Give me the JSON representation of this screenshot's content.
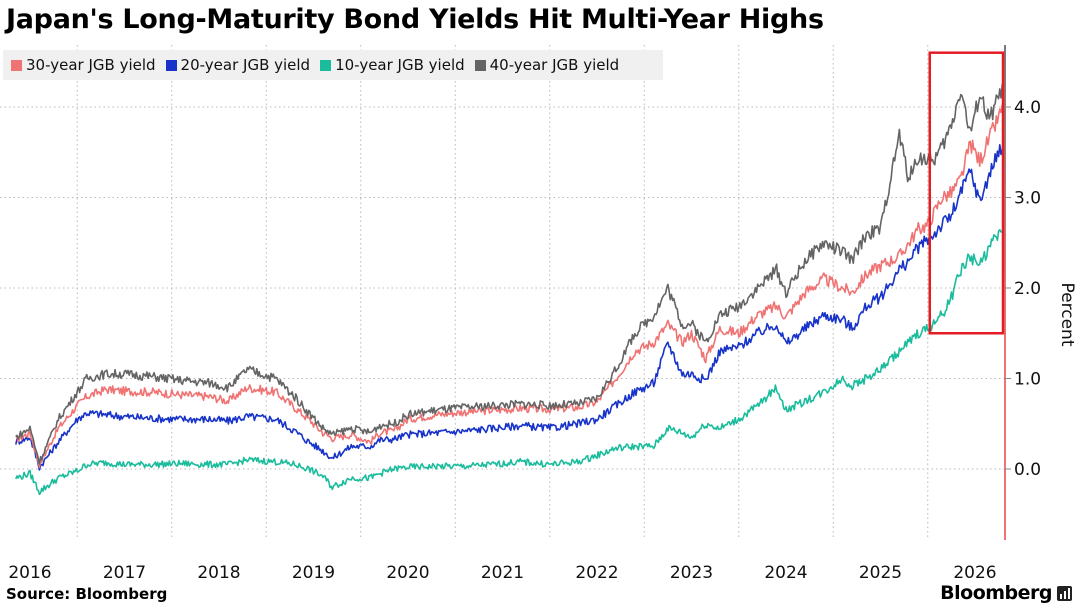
{
  "title": "Japan's Long-Maturity Bond Yields Hit Multi-Year Highs",
  "source": "Source: Bloomberg",
  "brand": "Bloomberg",
  "brand_icon": "bar-chart-icon",
  "chart_data": {
    "type": "line",
    "title": "Japan's Long-Maturity Bond Yields Hit Multi-Year Highs",
    "xlabel": "",
    "ylabel": "Percent",
    "ylim": [
      -0.75,
      4.7
    ],
    "yticks": [
      0.0,
      1.0,
      2.0,
      3.0,
      4.0
    ],
    "ytick_labels": [
      "0.0",
      "1.0",
      "2.0",
      "3.0",
      "4.0"
    ],
    "xlim": [
      2015.85,
      2026.45
    ],
    "xticks": [
      2016,
      2017,
      2018,
      2019,
      2020,
      2021,
      2022,
      2023,
      2024,
      2025,
      2026
    ],
    "xtick_labels": [
      "2016",
      "2017",
      "2018",
      "2019",
      "2020",
      "2021",
      "2022",
      "2023",
      "2024",
      "2025",
      "2026"
    ],
    "grid": true,
    "legend_position": "top-left",
    "highlight_box": {
      "x_range": [
        2025.5,
        2026.5
      ],
      "y_range": [
        1.5,
        4.6
      ],
      "color": "#e21d24"
    },
    "series": [
      {
        "name": "30-year JGB yield",
        "color": "#f07373",
        "x": [
          2015.85,
          2016.0,
          2016.1,
          2016.3,
          2016.5,
          2016.6,
          2016.8,
          2017.0,
          2017.3,
          2017.6,
          2017.9,
          2018.1,
          2018.3,
          2018.6,
          2018.8,
          2018.95,
          2019.1,
          2019.2,
          2019.4,
          2019.6,
          2019.7,
          2019.85,
          2020.0,
          2020.3,
          2020.6,
          2020.9,
          2021.2,
          2021.5,
          2021.8,
          2022.0,
          2022.2,
          2022.4,
          2022.6,
          2022.75,
          2022.9,
          2023.0,
          2023.15,
          2023.3,
          2023.5,
          2023.7,
          2023.9,
          2024.0,
          2024.2,
          2024.4,
          2024.6,
          2024.7,
          2024.85,
          2025.0,
          2025.2,
          2025.4,
          2025.5,
          2025.65,
          2025.75,
          2025.85,
          2025.95,
          2026.05,
          2026.15,
          2026.3
        ],
        "values": [
          0.32,
          0.4,
          0.05,
          0.45,
          0.7,
          0.8,
          0.88,
          0.86,
          0.85,
          0.82,
          0.8,
          0.75,
          0.9,
          0.85,
          0.68,
          0.55,
          0.4,
          0.34,
          0.38,
          0.3,
          0.4,
          0.42,
          0.55,
          0.6,
          0.63,
          0.65,
          0.67,
          0.66,
          0.68,
          0.74,
          1.0,
          1.3,
          1.4,
          1.6,
          1.4,
          1.5,
          1.22,
          1.55,
          1.5,
          1.7,
          1.8,
          1.68,
          1.95,
          2.1,
          2.0,
          1.95,
          2.15,
          2.25,
          2.35,
          2.65,
          2.7,
          3.0,
          3.05,
          3.2,
          3.6,
          3.4,
          3.65,
          4.0
        ]
      },
      {
        "name": "20-year JGB yield",
        "color": "#1733c9",
        "x": [
          2015.85,
          2016.0,
          2016.1,
          2016.3,
          2016.5,
          2016.6,
          2016.8,
          2017.0,
          2017.3,
          2017.6,
          2017.9,
          2018.1,
          2018.3,
          2018.6,
          2018.8,
          2018.95,
          2019.1,
          2019.2,
          2019.4,
          2019.6,
          2019.7,
          2019.85,
          2020.0,
          2020.3,
          2020.6,
          2020.9,
          2021.2,
          2021.5,
          2021.8,
          2022.0,
          2022.2,
          2022.4,
          2022.6,
          2022.75,
          2022.9,
          2023.0,
          2023.15,
          2023.3,
          2023.5,
          2023.7,
          2023.9,
          2024.0,
          2024.2,
          2024.4,
          2024.6,
          2024.7,
          2024.85,
          2025.0,
          2025.2,
          2025.3,
          2025.4,
          2025.55,
          2025.65,
          2025.75,
          2025.85,
          2025.95,
          2026.05,
          2026.15,
          2026.3
        ],
        "values": [
          0.3,
          0.35,
          0.02,
          0.3,
          0.55,
          0.62,
          0.6,
          0.58,
          0.56,
          0.55,
          0.55,
          0.53,
          0.58,
          0.55,
          0.42,
          0.3,
          0.2,
          0.12,
          0.25,
          0.25,
          0.32,
          0.33,
          0.38,
          0.4,
          0.42,
          0.45,
          0.48,
          0.45,
          0.5,
          0.55,
          0.7,
          0.85,
          0.95,
          1.4,
          1.05,
          1.05,
          0.98,
          1.3,
          1.35,
          1.5,
          1.6,
          1.38,
          1.55,
          1.7,
          1.65,
          1.55,
          1.8,
          1.9,
          2.2,
          2.3,
          2.45,
          2.58,
          2.7,
          2.8,
          3.05,
          3.3,
          2.95,
          3.25,
          3.62
        ]
      },
      {
        "name": "10-year JGB yield",
        "color": "#1abc9c",
        "x": [
          2015.85,
          2016.0,
          2016.1,
          2016.3,
          2016.5,
          2016.6,
          2016.8,
          2017.0,
          2017.3,
          2017.6,
          2017.9,
          2018.1,
          2018.3,
          2018.6,
          2018.8,
          2018.95,
          2019.1,
          2019.2,
          2019.4,
          2019.6,
          2019.7,
          2019.85,
          2020.0,
          2020.3,
          2020.6,
          2020.9,
          2021.2,
          2021.5,
          2021.8,
          2022.0,
          2022.2,
          2022.4,
          2022.6,
          2022.75,
          2022.9,
          2023.0,
          2023.15,
          2023.3,
          2023.5,
          2023.7,
          2023.9,
          2024.0,
          2024.2,
          2024.4,
          2024.6,
          2024.7,
          2024.85,
          2025.0,
          2025.2,
          2025.4,
          2025.5,
          2025.65,
          2025.75,
          2025.85,
          2025.95,
          2026.05,
          2026.15,
          2026.3
        ],
        "values": [
          -0.1,
          -0.05,
          -0.25,
          -0.1,
          -0.02,
          0.05,
          0.07,
          0.05,
          0.05,
          0.06,
          0.05,
          0.05,
          0.1,
          0.08,
          0.05,
          0.0,
          -0.08,
          -0.2,
          -0.1,
          -0.1,
          -0.05,
          0.0,
          0.02,
          0.03,
          0.03,
          0.05,
          0.08,
          0.05,
          0.08,
          0.15,
          0.23,
          0.25,
          0.25,
          0.45,
          0.4,
          0.35,
          0.5,
          0.45,
          0.55,
          0.7,
          0.9,
          0.65,
          0.75,
          0.85,
          1.0,
          0.92,
          1.0,
          1.1,
          1.3,
          1.5,
          1.55,
          1.7,
          1.9,
          2.2,
          2.35,
          2.25,
          2.45,
          2.65
        ]
      },
      {
        "name": "40-year JGB yield",
        "color": "#646464",
        "x": [
          2015.85,
          2016.0,
          2016.1,
          2016.3,
          2016.5,
          2016.6,
          2016.8,
          2017.0,
          2017.3,
          2017.6,
          2017.9,
          2018.1,
          2018.3,
          2018.6,
          2018.8,
          2018.95,
          2019.1,
          2019.2,
          2019.4,
          2019.6,
          2019.7,
          2019.85,
          2020.0,
          2020.3,
          2020.6,
          2020.9,
          2021.2,
          2021.5,
          2021.8,
          2022.0,
          2022.2,
          2022.4,
          2022.6,
          2022.75,
          2022.9,
          2023.0,
          2023.15,
          2023.3,
          2023.5,
          2023.7,
          2023.9,
          2024.0,
          2024.2,
          2024.4,
          2024.6,
          2024.7,
          2024.85,
          2025.0,
          2025.2,
          2025.3,
          2025.4,
          2025.55,
          2025.65,
          2025.75,
          2025.85,
          2025.95,
          2026.05,
          2026.15,
          2026.3
        ],
        "values": [
          0.35,
          0.45,
          0.08,
          0.55,
          0.85,
          1.0,
          1.05,
          1.05,
          1.02,
          0.98,
          0.95,
          0.9,
          1.1,
          1.0,
          0.8,
          0.62,
          0.45,
          0.38,
          0.45,
          0.4,
          0.48,
          0.5,
          0.6,
          0.65,
          0.68,
          0.7,
          0.72,
          0.7,
          0.72,
          0.78,
          1.1,
          1.5,
          1.7,
          2.0,
          1.6,
          1.6,
          1.4,
          1.7,
          1.8,
          2.0,
          2.2,
          1.95,
          2.3,
          2.5,
          2.4,
          2.3,
          2.6,
          2.65,
          3.7,
          3.2,
          3.45,
          3.4,
          3.55,
          3.8,
          4.2,
          3.7,
          4.15,
          3.85,
          4.25
        ]
      }
    ]
  }
}
